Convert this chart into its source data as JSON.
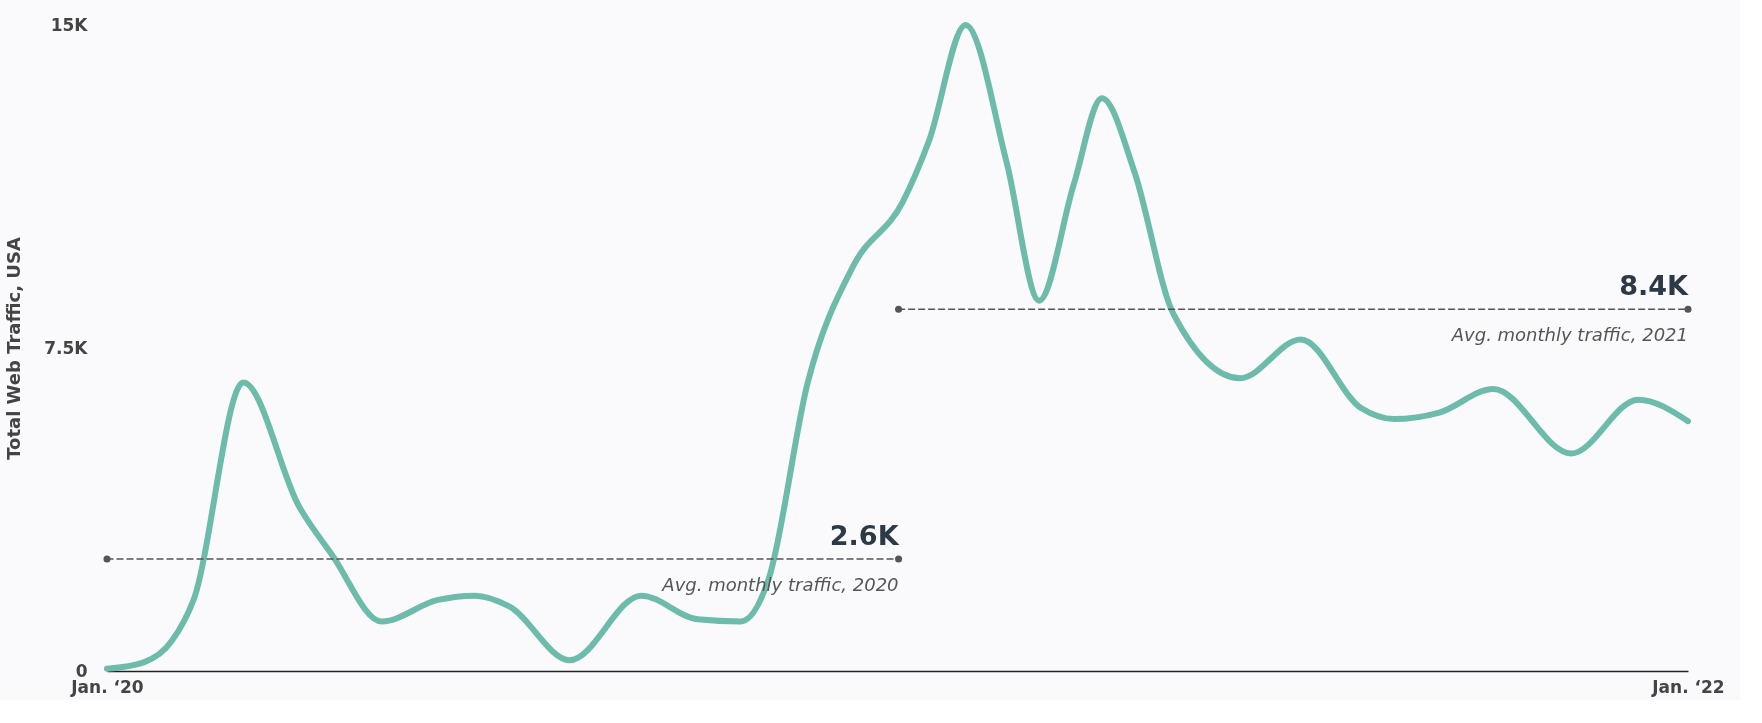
{
  "chart_data": {
    "type": "line",
    "ylabel": "Total Web Traffic, USA",
    "xlim": [
      "2020-01-01",
      "2022-01-01"
    ],
    "xticks": [
      {
        "value": "2020-01-01",
        "label": "Jan. ‘20"
      },
      {
        "value": "2022-01-01",
        "label": "Jan. ‘22"
      }
    ],
    "ylim": [
      0,
      15000
    ],
    "yticks": [
      0,
      {
        "value": 7500,
        "label": "7.5K"
      },
      {
        "value": 15000,
        "label": "15K"
      }
    ],
    "grid": false,
    "series": [
      {
        "color": "#6dbbab",
        "x": [
          "2020-01-01",
          "2020-01-18",
          "2020-01-31",
          "2020-02-10",
          "2020-03-04",
          "2020-03-30",
          "2020-04-14",
          "2020-05-07",
          "2020-06-02",
          "2020-06-19",
          "2020-07-05",
          "2020-08-02",
          "2020-09-04",
          "2020-09-30",
          "2020-10-20",
          "2020-11-02",
          "2020-11-20",
          "2020-12-11",
          "2021-01-03",
          "2021-01-15",
          "2021-02-01",
          "2021-02-20",
          "2021-03-07",
          "2021-03-23",
          "2021-04-05",
          "2021-04-20",
          "2021-05-08",
          "2021-06-08",
          "2021-07-06",
          "2021-08-03",
          "2021-08-18",
          "2021-09-08",
          "2021-10-03",
          "2021-11-08",
          "2021-12-09",
          "2022-01-01"
        ],
        "values": [
          50,
          200,
          700,
          1650,
          6700,
          3800,
          2700,
          1150,
          1650,
          1750,
          1500,
          250,
          1750,
          1200,
          1150,
          2150,
          6700,
          9400,
          10900,
          12300,
          15000,
          11800,
          8600,
          11300,
          13300,
          11600,
          8300,
          6800,
          7700,
          6100,
          5850,
          6000,
          6550,
          5050,
          6300,
          5800
        ],
        "line_style": "solid",
        "marker": "none"
      },
      {
        "color": "#555555",
        "x": [
          "2020-01-01",
          "2021-01-01"
        ],
        "values": [
          2600,
          2600
        ],
        "line_style": "dashed",
        "marker": "circle"
      },
      {
        "color": "#555555",
        "x": [
          "2021-01-01",
          "2022-01-01"
        ],
        "values": [
          8400,
          8400
        ],
        "line_style": "dashed",
        "marker": "circle"
      }
    ],
    "annotations": [
      {
        "text": "2.6K",
        "x": "2021-01-01",
        "y": 2600
      },
      {
        "text": "Avg. monthly traffic, 2020",
        "x": "2021-01-01",
        "y": 2600
      },
      {
        "text": "8.4K",
        "x": "2022-01-01",
        "y": 8400
      },
      {
        "text": "Avg. monthly traffic, 2021",
        "x": "2022-01-01",
        "y": 8400
      }
    ]
  }
}
